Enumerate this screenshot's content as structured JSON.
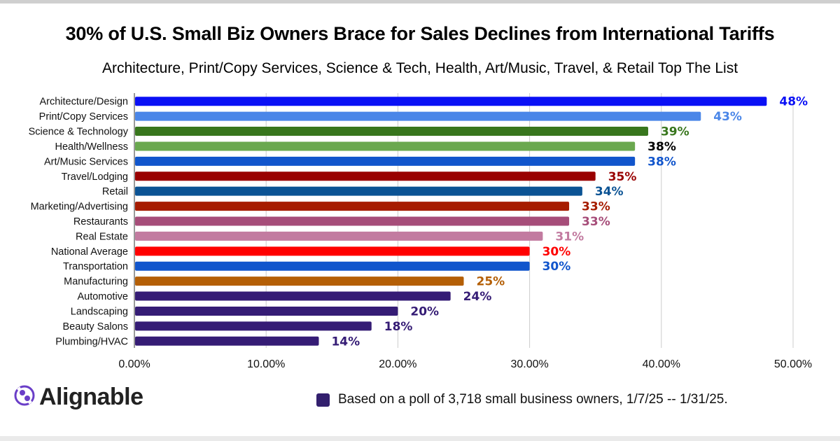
{
  "chart_data": {
    "type": "bar",
    "orientation": "horizontal",
    "title": "30% of U.S. Small Biz Owners Brace for Sales Declines from International Tariffs",
    "subtitle": "Architecture, Print/Copy Services, Science & Tech, Health, Art/Music, Travel, & Retail Top The List",
    "categories": [
      "Architecture/Design",
      "Print/Copy Services",
      "Science & Technology",
      "Health/Wellness",
      "Art/Music Services",
      "Travel/Lodging",
      "Retail",
      "Marketing/Advertising",
      "Restaurants",
      "Real Estate",
      "National Average",
      "Transportation",
      "Manufacturing",
      "Automotive",
      "Landscaping",
      "Beauty Salons",
      "Plumbing/HVAC"
    ],
    "values": [
      48,
      43,
      39,
      38,
      38,
      35,
      34,
      33,
      33,
      31,
      30,
      30,
      25,
      24,
      20,
      18,
      14
    ],
    "value_labels": [
      "48%",
      "43%",
      "39%",
      "38%",
      "38%",
      "35%",
      "34%",
      "33%",
      "33%",
      "31%",
      "30%",
      "30%",
      "25%",
      "24%",
      "20%",
      "18%",
      "14%"
    ],
    "bar_colors": [
      "#0a10f5",
      "#4a86e8",
      "#38761d",
      "#6aa84f",
      "#1155cc",
      "#990000",
      "#0b5394",
      "#a61c00",
      "#a64d79",
      "#c27ba0",
      "#ff0000",
      "#1155cc",
      "#b45f06",
      "#351c75",
      "#351c75",
      "#351c75",
      "#351c75"
    ],
    "label_colors": [
      "#0a10f5",
      "#4a86e8",
      "#38761d",
      "#000000",
      "#1155cc",
      "#990000",
      "#0b5394",
      "#a61c00",
      "#a64d79",
      "#c27ba0",
      "#ff0000",
      "#1155cc",
      "#b45f06",
      "#351c75",
      "#351c75",
      "#351c75",
      "#351c75"
    ],
    "x_ticks": [
      0,
      10,
      20,
      30,
      40,
      50
    ],
    "x_tick_labels": [
      "0.00%",
      "10.00%",
      "20.00%",
      "30.00%",
      "40.00%",
      "50.00%"
    ],
    "xlim": [
      0,
      50
    ],
    "xlabel": "",
    "ylabel": "",
    "grid": true,
    "legend": {
      "text": "Based on a poll of 3,718 small business owners, 1/7/25 -- 1/31/25.",
      "color": "#33206e",
      "placement": "bottom"
    }
  },
  "brand": {
    "name": "Alignable",
    "icon": "alignable-logo-icon",
    "color": "#6a3ec8"
  }
}
